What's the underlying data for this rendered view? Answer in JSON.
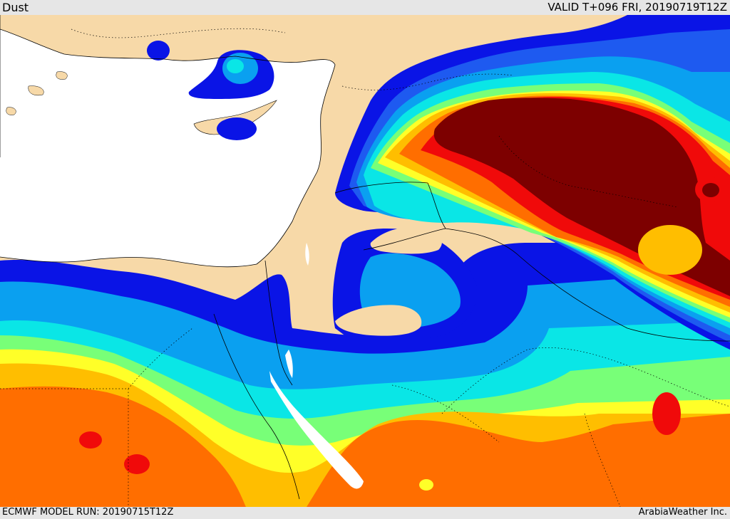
{
  "header": {
    "product": "Dust",
    "valid_time": "VALID T+096 FRI, 20190719T12Z"
  },
  "footer": {
    "model_run": "ECMWF MODEL RUN: 20190715T12Z",
    "credit": "ArabiaWeather Inc."
  },
  "colors": {
    "land": "#f7d9a8",
    "sea": "#ffffff",
    "blue_dark": "#0a14e6",
    "blue_mid": "#1e5af0",
    "blue_light": "#0aa0f0",
    "cyan": "#0ae6e6",
    "green": "#78ff78",
    "yellow": "#ffff28",
    "gold": "#ffbe00",
    "orange": "#ff6e00",
    "red": "#f00a0a",
    "darkred": "#7d0000"
  }
}
